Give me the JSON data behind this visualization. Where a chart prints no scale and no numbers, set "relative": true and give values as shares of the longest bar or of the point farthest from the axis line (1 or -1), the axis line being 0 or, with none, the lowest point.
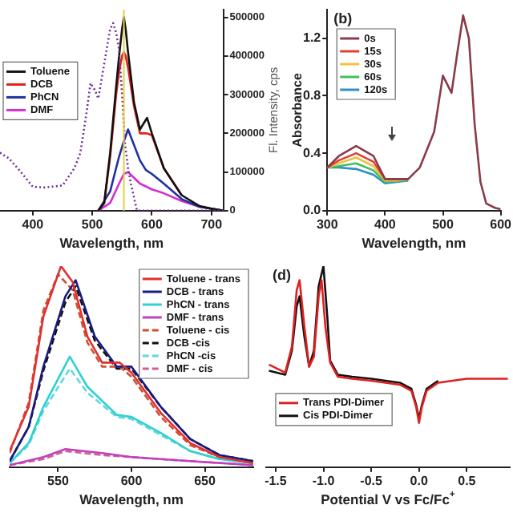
{
  "chart_data": [
    {
      "type": "line",
      "xlabel": "Wavelength, nm",
      "y2label": "Fl. Intensity, cps",
      "xlim": [
        345,
        720
      ],
      "xticks": [
        400,
        500,
        600,
        700
      ],
      "y2lim": [
        0,
        520000
      ],
      "y2ticks": [
        0,
        100000,
        200000,
        300000,
        400000,
        500000
      ],
      "grid": false,
      "legend": "left",
      "ref_lines": [
        {
          "axis": "x",
          "value": 553,
          "color": "#e0d040"
        }
      ],
      "series": [
        {
          "color": "#7030a0",
          "axis": "y2",
          "line_style": "dotted",
          "x": [
            345,
            360,
            380,
            400,
            420,
            450,
            470,
            480,
            490,
            497,
            505,
            510,
            520,
            530,
            535,
            540,
            545,
            550,
            555,
            560,
            565,
            575,
            600,
            650,
            720
          ],
          "values": [
            150000,
            135000,
            100000,
            62000,
            60000,
            65000,
            110000,
            150000,
            250000,
            330000,
            310000,
            290000,
            380000,
            470000,
            485000,
            460000,
            415000,
            300000,
            173000,
            110000,
            68000,
            0,
            0,
            0,
            0
          ]
        },
        {
          "name": "Toluene",
          "color": "#111111",
          "axis": "y2",
          "line_style": "solid",
          "x": [
            510,
            520,
            530,
            540,
            545,
            550,
            553,
            556,
            560,
            570,
            580,
            592,
            600,
            620,
            650,
            680,
            700,
            720
          ],
          "values": [
            0,
            20000,
            150000,
            320000,
            400000,
            470000,
            500000,
            470000,
            410000,
            280000,
            210000,
            240000,
            200000,
            110000,
            40000,
            12000,
            5000,
            0
          ]
        },
        {
          "name": "DCB",
          "color": "#e02020",
          "axis": "y2",
          "line_style": "solid",
          "x": [
            510,
            520,
            530,
            540,
            545,
            550,
            553,
            556,
            560,
            570,
            580,
            592,
            600,
            620,
            650
          ],
          "values": [
            0,
            20000,
            140000,
            300000,
            360000,
            400000,
            410000,
            400000,
            370000,
            270000,
            200000,
            200000,
            195000,
            110000,
            40000
          ]
        },
        {
          "name": "PhCN",
          "color": "#2030a0",
          "axis": "y2",
          "line_style": "solid",
          "x": [
            510,
            530,
            545,
            553,
            560,
            570,
            580,
            590,
            600,
            620,
            650,
            680,
            720
          ],
          "values": [
            0,
            50000,
            140000,
            180000,
            210000,
            170000,
            130000,
            105000,
            95000,
            70000,
            30000,
            10000,
            0
          ]
        },
        {
          "name": "DMF",
          "color": "#d030d0",
          "axis": "y2",
          "line_style": "solid",
          "x": [
            510,
            530,
            545,
            553,
            560,
            570,
            580,
            600,
            620,
            650,
            680,
            720
          ],
          "values": [
            0,
            20000,
            70000,
            95000,
            100000,
            85000,
            70000,
            55000,
            45000,
            25000,
            10000,
            0
          ]
        }
      ]
    },
    {
      "type": "line",
      "xlabel": "Wavelength, nm",
      "ylabel": "Absorbance",
      "xlim": [
        300,
        600
      ],
      "xticks": [
        300,
        400,
        500,
        600
      ],
      "ylim": [
        0,
        1.4
      ],
      "yticks": [
        {
          "value": 0,
          "label": "0.0"
        },
        0.4,
        0.8,
        1.2
      ],
      "grid": false,
      "legend": "top left",
      "annotations": [
        "(b)"
      ],
      "series": [
        {
          "name": "0s",
          "color": "#8b3a4a",
          "line_style": "solid",
          "x": [
            300,
            320,
            350,
            380,
            400,
            420,
            440,
            460,
            470,
            485,
            500,
            515,
            525,
            535,
            545,
            555,
            565,
            575,
            590,
            600
          ],
          "values": [
            0.3,
            0.38,
            0.45,
            0.38,
            0.22,
            0.22,
            0.22,
            0.3,
            0.4,
            0.55,
            0.94,
            0.82,
            1.1,
            1.36,
            1.2,
            0.6,
            0.2,
            0.05,
            0.02,
            0.01
          ]
        },
        {
          "name": "15s",
          "color": "#e04030",
          "line_style": "solid",
          "x": [
            300,
            320,
            350,
            380,
            400,
            420,
            440
          ],
          "values": [
            0.3,
            0.35,
            0.4,
            0.34,
            0.22,
            0.22,
            0.22
          ]
        },
        {
          "name": "30s",
          "color": "#f0c040",
          "line_style": "solid",
          "x": [
            300,
            320,
            350,
            380,
            400,
            420,
            440
          ],
          "values": [
            0.3,
            0.33,
            0.37,
            0.31,
            0.21,
            0.21,
            0.22
          ]
        },
        {
          "name": "60s",
          "color": "#40c060",
          "line_style": "solid",
          "x": [
            300,
            320,
            350,
            380,
            400,
            420,
            440
          ],
          "values": [
            0.3,
            0.31,
            0.33,
            0.28,
            0.2,
            0.21,
            0.21
          ]
        },
        {
          "name": "120s",
          "color": "#3090c0",
          "line_style": "solid",
          "x": [
            300,
            320,
            350,
            380,
            400,
            420,
            440
          ],
          "values": [
            0.3,
            0.3,
            0.29,
            0.25,
            0.19,
            0.2,
            0.21
          ]
        }
      ]
    },
    {
      "type": "line",
      "xlabel": "Wavelength, nm",
      "xlim": [
        517,
        683
      ],
      "xticks": [
        550,
        600,
        650
      ],
      "relative": true,
      "grid": false,
      "legend": "top right",
      "series": [
        {
          "name": "Toluene - trans",
          "color": "#e03030",
          "line_style": "solid",
          "x": [
            517,
            530,
            540,
            552,
            560,
            570,
            580,
            592,
            600,
            620,
            640,
            660,
            683
          ],
          "values": [
            0.08,
            0.3,
            0.75,
            1.0,
            0.92,
            0.65,
            0.52,
            0.52,
            0.47,
            0.27,
            0.12,
            0.05,
            0.02
          ]
        },
        {
          "name": "DCB - trans",
          "color": "#1a1a80",
          "line_style": "solid",
          "x": [
            517,
            530,
            540,
            555,
            562,
            575,
            590,
            600,
            620,
            640,
            660,
            683
          ],
          "values": [
            0.03,
            0.2,
            0.5,
            0.85,
            0.93,
            0.65,
            0.5,
            0.5,
            0.3,
            0.14,
            0.06,
            0.03
          ]
        },
        {
          "name": "PhCN - trans",
          "color": "#30d0d0",
          "line_style": "solid",
          "x": [
            517,
            530,
            540,
            558,
            570,
            590,
            600,
            620,
            640,
            660,
            683
          ],
          "values": [
            0.02,
            0.12,
            0.3,
            0.55,
            0.4,
            0.26,
            0.25,
            0.17,
            0.08,
            0.04,
            0.02
          ]
        },
        {
          "name": "DMF - trans",
          "color": "#c040c0",
          "line_style": "solid",
          "x": [
            517,
            540,
            555,
            580,
            600,
            640,
            683
          ],
          "values": [
            0.01,
            0.05,
            0.09,
            0.07,
            0.05,
            0.03,
            0.01
          ]
        },
        {
          "name": "Toluene - cis",
          "color": "#d05030",
          "line_style": "dashed",
          "x": [
            517,
            530,
            540,
            550,
            560,
            570,
            580,
            592,
            600,
            620,
            640,
            660,
            683
          ],
          "values": [
            0.07,
            0.32,
            0.78,
            0.96,
            0.88,
            0.62,
            0.5,
            0.5,
            0.45,
            0.25,
            0.11,
            0.05,
            0.02
          ]
        },
        {
          "name": "DCB -cis",
          "color": "#111111",
          "line_style": "dashed",
          "x": [
            517,
            530,
            540,
            555,
            562,
            575,
            590,
            600,
            620,
            640,
            660,
            683
          ],
          "values": [
            0.03,
            0.2,
            0.48,
            0.82,
            0.9,
            0.63,
            0.49,
            0.49,
            0.3,
            0.14,
            0.06,
            0.03
          ]
        },
        {
          "name": "PhCN -cis",
          "color": "#60d8e0",
          "line_style": "dashed",
          "x": [
            517,
            530,
            540,
            558,
            570,
            590,
            600,
            620,
            640,
            660,
            683
          ],
          "values": [
            0.02,
            0.11,
            0.28,
            0.49,
            0.37,
            0.25,
            0.24,
            0.16,
            0.08,
            0.04,
            0.02
          ]
        },
        {
          "name": "DMF - cis",
          "color": "#d06090",
          "line_style": "dashed",
          "x": [
            517,
            540,
            555,
            580,
            600,
            640,
            683
          ],
          "values": [
            0.01,
            0.04,
            0.08,
            0.06,
            0.05,
            0.03,
            0.01
          ]
        }
      ]
    },
    {
      "type": "line",
      "xlabel": "Potential V vs Fc/Fc$^{+}$",
      "xlim": [
        -1.6,
        0.95
      ],
      "xticks": [
        -1.5,
        {
          "value": -1,
          "label": "-1.0"
        },
        -0.5,
        {
          "value": 0,
          "label": "0.0"
        },
        0.5
      ],
      "relative": true,
      "grid": false,
      "legend": "bottom left",
      "annotations": [
        "(d)"
      ],
      "series": [
        {
          "name": "Trans PDI-Dimer",
          "color": "#e02020",
          "line_style": "solid",
          "x": [
            -1.57,
            -1.4,
            -1.33,
            -1.28,
            -1.25,
            -1.2,
            -1.15,
            -1.1,
            -1.05,
            -1.02,
            -0.98,
            -0.93,
            -0.85,
            -0.7,
            -0.5,
            -0.2,
            -0.08,
            -0.03,
            0,
            0.03,
            0.08,
            0.2,
            0.5,
            0.93
          ],
          "values": [
            0.51,
            0.47,
            0.6,
            0.88,
            0.93,
            0.7,
            0.5,
            0.55,
            0.85,
            0.93,
            0.7,
            0.52,
            0.45,
            0.44,
            0.43,
            0.41,
            0.38,
            0.3,
            0.22,
            0.3,
            0.38,
            0.42,
            0.44,
            0.44
          ]
        },
        {
          "name": "Cis PDI-Dimer",
          "color": "#111111",
          "line_style": "solid",
          "x": [
            -1.57,
            -1.4,
            -1.33,
            -1.28,
            -1.25,
            -1.2,
            -1.15,
            -1.1,
            -1.05,
            -1.0,
            -0.96,
            -0.93,
            -0.85,
            -0.7,
            -0.5,
            -0.2,
            -0.08,
            -0.03,
            0,
            0.03,
            0.08,
            0.2
          ],
          "values": [
            0.48,
            0.46,
            0.58,
            0.8,
            0.85,
            0.65,
            0.5,
            0.58,
            0.9,
            1.0,
            0.75,
            0.53,
            0.46,
            0.45,
            0.44,
            0.42,
            0.39,
            0.31,
            0.24,
            0.31,
            0.39,
            0.43
          ]
        }
      ]
    }
  ]
}
